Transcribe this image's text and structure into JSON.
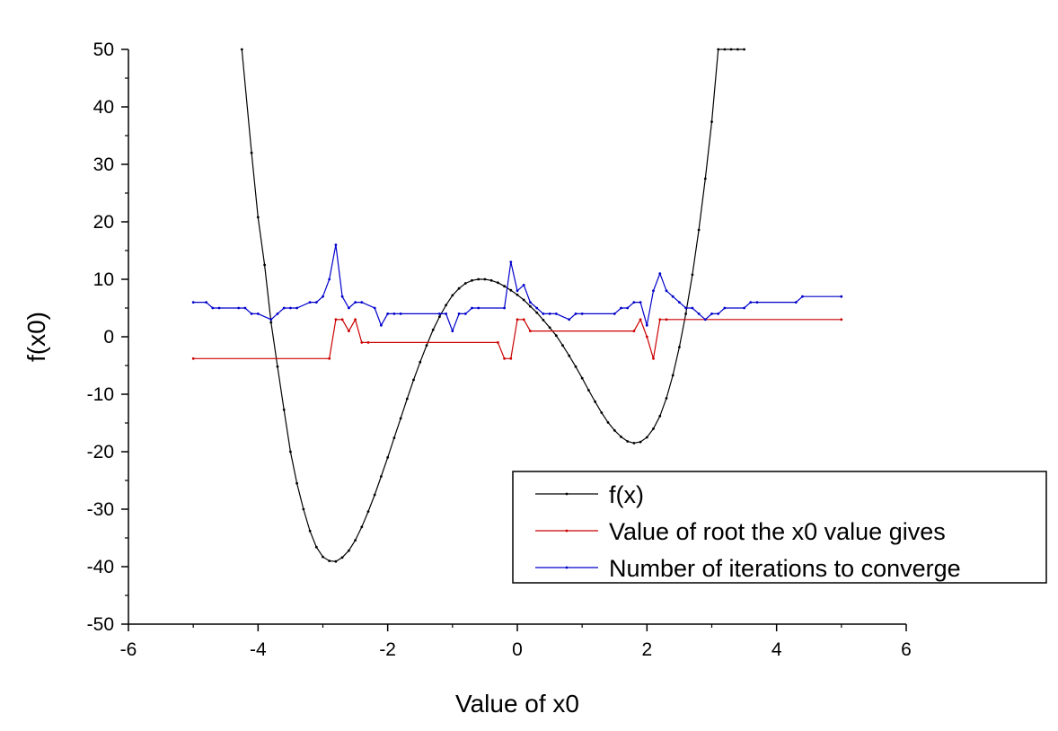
{
  "chart_data": {
    "type": "line",
    "title": "",
    "xlabel": "Value of x0",
    "ylabel": "f(x0)",
    "xlim": [
      -6,
      6
    ],
    "ylim": [
      -50,
      50
    ],
    "x_ticks": [
      -6,
      -4,
      -2,
      0,
      2,
      4,
      6
    ],
    "y_ticks": [
      -50,
      -40,
      -30,
      -20,
      -10,
      0,
      10,
      20,
      30,
      40,
      50
    ],
    "grid": false,
    "legend_position": "bottom-right",
    "series": [
      {
        "name": "f(x)",
        "color": "#000000",
        "x": [
          -4.25,
          -4.1,
          -4.0,
          -3.9,
          -3.8,
          -3.7,
          -3.6,
          -3.5,
          -3.4,
          -3.3,
          -3.2,
          -3.1,
          -3.0,
          -2.9,
          -2.8,
          -2.7,
          -2.6,
          -2.5,
          -2.4,
          -2.3,
          -2.2,
          -2.1,
          -2.0,
          -1.9,
          -1.8,
          -1.7,
          -1.6,
          -1.5,
          -1.4,
          -1.3,
          -1.2,
          -1.1,
          -1.0,
          -0.9,
          -0.8,
          -0.7,
          -0.6,
          -0.5,
          -0.4,
          -0.3,
          -0.2,
          -0.1,
          0.0,
          0.1,
          0.2,
          0.3,
          0.4,
          0.5,
          0.6,
          0.7,
          0.8,
          0.9,
          1.0,
          1.1,
          1.2,
          1.3,
          1.4,
          1.5,
          1.6,
          1.7,
          1.8,
          1.9,
          2.0,
          2.1,
          2.2,
          2.3,
          2.4,
          2.5,
          2.6,
          2.7,
          2.8,
          2.9,
          3.0,
          3.1,
          3.2,
          3.3,
          3.4,
          3.5
        ],
        "y": [
          50.0,
          32.0,
          20.8,
          12.5,
          2.5,
          -5.2,
          -12.7,
          -20.0,
          -25.5,
          -30.0,
          -33.8,
          -36.6,
          -38.3,
          -39.0,
          -39.1,
          -38.4,
          -37.2,
          -35.4,
          -33.1,
          -30.4,
          -27.5,
          -24.3,
          -21.0,
          -17.6,
          -14.2,
          -10.8,
          -7.5,
          -4.4,
          -1.5,
          1.2,
          3.5,
          5.5,
          7.2,
          8.4,
          9.3,
          9.8,
          10.0,
          10.0,
          9.8,
          9.4,
          8.8,
          8.1,
          7.3,
          6.4,
          5.3,
          4.2,
          2.9,
          1.6,
          0.2,
          -1.5,
          -3.3,
          -5.2,
          -7.2,
          -9.3,
          -11.3,
          -13.2,
          -14.9,
          -16.3,
          -17.4,
          -18.2,
          -18.5,
          -18.3,
          -17.5,
          -16.0,
          -13.8,
          -10.7,
          -6.7,
          -1.8,
          4.0,
          10.8,
          18.6,
          27.5,
          37.4,
          50.0,
          50.0,
          50.0,
          50.0,
          50.0
        ]
      },
      {
        "name": "Value of root the x0 value gives",
        "color": "#cc0000",
        "x": [
          -5.0,
          -2.9,
          -2.8,
          -2.7,
          -2.6,
          -2.5,
          -2.4,
          -2.3,
          -0.3,
          -0.2,
          -0.1,
          0.0,
          0.1,
          0.2,
          1.8,
          1.9,
          2.0,
          2.1,
          2.2,
          2.3,
          5.0
        ],
        "y": [
          -3.8,
          -3.8,
          3.0,
          3.0,
          1.0,
          3.0,
          -1.0,
          -1.0,
          -1.0,
          -3.8,
          -3.8,
          3.0,
          3.0,
          1.0,
          1.0,
          3.0,
          0.0,
          -3.8,
          3.0,
          3.0,
          3.0
        ]
      },
      {
        "name": "Number of iterations to converge",
        "color": "#0000cc",
        "x": [
          -5.0,
          -4.8,
          -4.7,
          -4.6,
          -4.3,
          -4.2,
          -4.1,
          -4.0,
          -3.8,
          -3.7,
          -3.6,
          -3.5,
          -3.4,
          -3.2,
          -3.1,
          -3.0,
          -2.9,
          -2.8,
          -2.7,
          -2.6,
          -2.5,
          -2.4,
          -2.2,
          -2.1,
          -2.0,
          -1.9,
          -1.8,
          -1.2,
          -1.1,
          -1.0,
          -0.9,
          -0.8,
          -0.7,
          -0.6,
          -0.2,
          -0.1,
          0.0,
          0.1,
          0.2,
          0.3,
          0.4,
          0.5,
          0.6,
          0.8,
          0.9,
          1.0,
          1.5,
          1.6,
          1.7,
          1.8,
          1.9,
          2.0,
          2.1,
          2.2,
          2.3,
          2.4,
          2.5,
          2.6,
          2.7,
          2.8,
          2.9,
          3.0,
          3.1,
          3.2,
          3.5,
          3.6,
          3.7,
          4.3,
          4.4,
          5.0
        ],
        "y": [
          6.0,
          6.0,
          5.0,
          5.0,
          5.0,
          5.0,
          4.0,
          4.0,
          3.0,
          4.0,
          5.0,
          5.0,
          5.0,
          6.0,
          6.0,
          7.0,
          10.0,
          16.0,
          7.0,
          5.0,
          6.0,
          6.0,
          5.0,
          2.0,
          4.0,
          4.0,
          4.0,
          4.0,
          4.0,
          1.0,
          4.0,
          4.0,
          5.0,
          5.0,
          5.0,
          13.0,
          8.0,
          9.0,
          6.0,
          5.0,
          4.0,
          4.0,
          4.0,
          3.0,
          4.0,
          4.0,
          4.0,
          5.0,
          5.0,
          6.0,
          6.0,
          2.0,
          8.0,
          11.0,
          8.0,
          7.0,
          6.0,
          5.0,
          5.0,
          4.0,
          3.0,
          4.0,
          4.0,
          5.0,
          5.0,
          6.0,
          6.0,
          6.0,
          7.0,
          7.0
        ]
      }
    ]
  }
}
